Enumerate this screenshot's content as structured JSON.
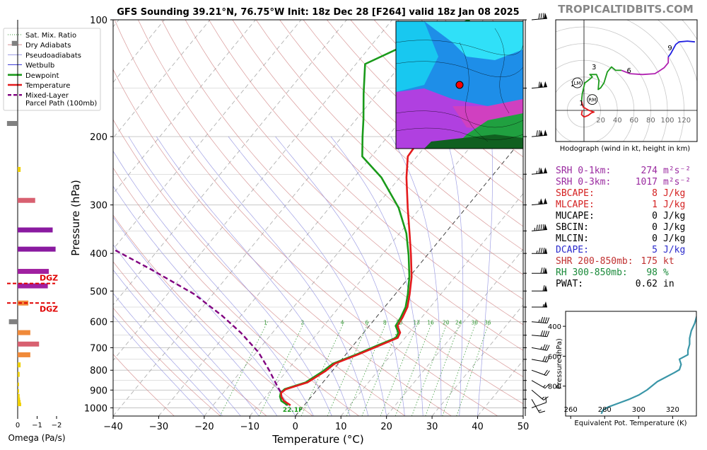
{
  "header": {
    "title": "GFS Sounding 39.21°N, 76.75°W Init: 18z Dec 28 [F264] valid 18z Jan 08 2025",
    "brand": "TROPICALTIDBITS.COM"
  },
  "colors": {
    "temperature": "#e41a1c",
    "dewpoint": "#1a9a1a",
    "parcel": "#800080",
    "dry_adiabat": "#d08080",
    "pseudoadiabat": "#9090e0",
    "mixing_ratio": "#3a9a3a",
    "theta_e": "#3a96a8"
  },
  "legend": {
    "items": [
      {
        "label": "Sat. Mix. Ratio",
        "kind": "dotted",
        "color": "#3a9a3a"
      },
      {
        "label": "Dry Adiabats",
        "kind": "thin",
        "color": "#d08080"
      },
      {
        "label": "Pseudoadiabats",
        "kind": "thin",
        "color": "#9090e0"
      },
      {
        "label": "Wetbulb",
        "kind": "thin",
        "color": "#2020d0"
      },
      {
        "label": "Dewpoint",
        "kind": "thick",
        "color": "#1a9a1a"
      },
      {
        "label": "Temperature",
        "kind": "thick",
        "color": "#e41a1c"
      },
      {
        "label": "Mixed-Layer",
        "label2": "Parcel Path (100mb)",
        "kind": "dashed",
        "color": "#800080"
      }
    ]
  },
  "omega": {
    "xlabel": "Omega (Pa/s)",
    "ticks": [
      "0",
      "−1",
      "−2"
    ],
    "dgz_label": "DGZ",
    "dgz_levels": [
      478,
      537
    ],
    "bars": [
      {
        "p": 115,
        "v": 0.3
      },
      {
        "p": 185,
        "v": 0.55
      },
      {
        "p": 243,
        "v": -0.15
      },
      {
        "p": 292,
        "v": -0.9
      },
      {
        "p": 348,
        "v": -1.8
      },
      {
        "p": 390,
        "v": -1.95
      },
      {
        "p": 445,
        "v": -1.6
      },
      {
        "p": 485,
        "v": -1.55
      },
      {
        "p": 537,
        "v": -0.55
      },
      {
        "p": 600,
        "v": 0.45
      },
      {
        "p": 640,
        "v": -0.65
      },
      {
        "p": 685,
        "v": -1.1
      },
      {
        "p": 730,
        "v": -0.65
      },
      {
        "p": 775,
        "v": -0.15
      },
      {
        "p": 820,
        "v": -0.1
      },
      {
        "p": 870,
        "v": -0.05
      },
      {
        "p": 905,
        "v": -0.05
      },
      {
        "p": 930,
        "v": -0.1
      },
      {
        "p": 950,
        "v": -0.12
      },
      {
        "p": 965,
        "v": -0.15
      },
      {
        "p": 980,
        "v": -0.18
      }
    ]
  },
  "chart_data": [
    {
      "type": "line",
      "title": "GFS Sounding 39.21°N, 76.75°W Init: 18z Dec 28 [F264] valid 18z Jan 08 2025",
      "xlabel": "Temperature (°C)",
      "ylabel": "Pressure (hPa)",
      "xlim": [
        -40,
        50
      ],
      "ylim": [
        1050,
        100
      ],
      "y_scale": "log",
      "skew": true,
      "x_ticks": [
        "−40",
        "−30",
        "−20",
        "−10",
        "0",
        "10",
        "20",
        "30",
        "40",
        "50"
      ],
      "y_ticks": [
        "100",
        "200",
        "300",
        "400",
        "500",
        "600",
        "700",
        "800",
        "900",
        "1000"
      ],
      "mixing_ratio_labels": [
        "1",
        "2",
        "4",
        "6",
        "8",
        "10",
        "13",
        "16",
        "20",
        "24",
        "30",
        "36"
      ],
      "annotation": "22.1F",
      "series": [
        {
          "name": "Temperature",
          "points": [
            [
              -3.0,
              985
            ],
            [
              -5.2,
              960
            ],
            [
              -6.6,
              935
            ],
            [
              -7.3,
              915
            ],
            [
              -6.9,
              895
            ],
            [
              -3.4,
              860
            ],
            [
              -1.5,
              805
            ],
            [
              -0.8,
              770
            ],
            [
              3.0,
              725
            ],
            [
              5.7,
              692
            ],
            [
              8.4,
              660
            ],
            [
              8.0,
              640
            ],
            [
              6.2,
              615
            ],
            [
              5.8,
              585
            ],
            [
              5.0,
              550
            ],
            [
              3.2,
              510
            ],
            [
              0.5,
              460
            ],
            [
              -3.5,
              405
            ],
            [
              -7.8,
              355
            ],
            [
              -12.8,
              305
            ],
            [
              -18.5,
              255
            ],
            [
              -22.0,
              225
            ],
            [
              -22.5,
              200
            ],
            [
              -20.7,
              180
            ],
            [
              -16.8,
              155
            ],
            [
              -12.5,
              130
            ],
            [
              -8.7,
              115
            ],
            [
              -4.2,
              100
            ]
          ]
        },
        {
          "name": "Dewpoint",
          "points": [
            [
              -3.6,
              985
            ],
            [
              -5.8,
              960
            ],
            [
              -6.9,
              935
            ],
            [
              -7.4,
              915
            ],
            [
              -7.2,
              895
            ],
            [
              -3.8,
              860
            ],
            [
              -2.0,
              805
            ],
            [
              -1.2,
              770
            ],
            [
              2.6,
              725
            ],
            [
              5.2,
              692
            ],
            [
              8.0,
              660
            ],
            [
              7.6,
              640
            ],
            [
              5.8,
              615
            ],
            [
              5.4,
              585
            ],
            [
              4.6,
              550
            ],
            [
              2.8,
              510
            ],
            [
              0.0,
              460
            ],
            [
              -4.0,
              405
            ],
            [
              -8.5,
              355
            ],
            [
              -14.8,
              305
            ],
            [
              -24.0,
              255
            ],
            [
              -32.0,
              225
            ],
            [
              -35.5,
              200
            ],
            [
              -38.5,
              180
            ],
            [
              -43.0,
              155
            ],
            [
              -48.0,
              130
            ],
            [
              -42.0,
              115
            ],
            [
              -33.0,
              100
            ]
          ]
        },
        {
          "name": "Mixed-Layer Parcel Path (100mb)",
          "points": [
            [
              -3.8,
              985
            ],
            [
              -5.5,
              960
            ],
            [
              -6.8,
              935
            ],
            [
              -7.3,
              915
            ],
            [
              -9.3,
              880
            ],
            [
              -14.0,
              800
            ],
            [
              -19.5,
              720
            ],
            [
              -27.0,
              640
            ],
            [
              -34.0,
              580
            ],
            [
              -44.0,
              510
            ],
            [
              -58.0,
              440
            ],
            [
              -70.0,
              390
            ],
            [
              -82.0,
              355
            ]
          ]
        }
      ],
      "wind_barbs": [
        {
          "p": 1000,
          "dir": 250,
          "kt": 12
        },
        {
          "p": 950,
          "dir": 330,
          "kt": 18
        },
        {
          "p": 900,
          "dir": 310,
          "kt": 17
        },
        {
          "p": 850,
          "dir": 300,
          "kt": 16
        },
        {
          "p": 800,
          "dir": 290,
          "kt": 20
        },
        {
          "p": 750,
          "dir": 280,
          "kt": 30
        },
        {
          "p": 700,
          "dir": 280,
          "kt": 35
        },
        {
          "p": 650,
          "dir": 275,
          "kt": 40
        },
        {
          "p": 600,
          "dir": 275,
          "kt": 45
        },
        {
          "p": 550,
          "dir": 270,
          "kt": 55
        },
        {
          "p": 500,
          "dir": 270,
          "kt": 60
        },
        {
          "p": 450,
          "dir": 270,
          "kt": 70
        },
        {
          "p": 400,
          "dir": 270,
          "kt": 85
        },
        {
          "p": 350,
          "dir": 265,
          "kt": 95
        },
        {
          "p": 300,
          "dir": 265,
          "kt": 105
        },
        {
          "p": 250,
          "dir": 265,
          "kt": 115
        },
        {
          "p": 200,
          "dir": 265,
          "kt": 120
        },
        {
          "p": 150,
          "dir": 265,
          "kt": 110
        },
        {
          "p": 100,
          "dir": 265,
          "kt": 80
        }
      ]
    },
    {
      "type": "line",
      "title": "Hodograph (wind in kt, height in km)",
      "ring_labels": [
        "20",
        "40",
        "60",
        "80",
        "100",
        "120"
      ],
      "height_labels": [
        "1",
        "2",
        "3",
        "6",
        "9"
      ],
      "markers": [
        "LM",
        "RM"
      ],
      "points": [
        [
          -2,
          0
        ],
        [
          -3,
          -5
        ],
        [
          0,
          -8
        ],
        [
          5,
          -6
        ],
        [
          9,
          -3
        ],
        [
          12,
          -2
        ],
        [
          6,
          0
        ],
        [
          -1,
          4
        ],
        [
          -3,
          11
        ],
        [
          -2,
          20
        ],
        [
          1,
          33
        ],
        [
          4,
          35
        ],
        [
          10,
          40
        ],
        [
          7,
          43
        ],
        [
          15,
          43
        ],
        [
          18,
          36
        ],
        [
          17,
          25
        ],
        [
          20,
          27
        ],
        [
          24,
          33
        ],
        [
          28,
          46
        ],
        [
          33,
          52
        ],
        [
          38,
          48
        ],
        [
          45,
          48
        ],
        [
          55,
          44
        ],
        [
          70,
          43
        ],
        [
          85,
          44
        ],
        [
          90,
          47
        ],
        [
          96,
          51
        ],
        [
          101,
          57
        ],
        [
          101,
          64
        ],
        [
          104,
          68
        ],
        [
          110,
          79
        ],
        [
          114,
          82
        ],
        [
          124,
          83
        ],
        [
          133,
          82
        ]
      ],
      "series_colors": [
        {
          "from": 0,
          "to": 8,
          "color": "#e41a1c"
        },
        {
          "from": 8,
          "to": 22,
          "color": "#1a9a1a"
        },
        {
          "from": 22,
          "to": 29,
          "color": "#b020b0"
        },
        {
          "from": 29,
          "to": 34,
          "color": "#2020e0"
        }
      ]
    },
    {
      "type": "line",
      "xlabel": "Equivalent Pot. Temperature (K)",
      "ylabel": "Pressure (hPa)",
      "xlim": [
        257,
        334
      ],
      "ylim": [
        1000,
        300
      ],
      "x_ticks": [
        "260",
        "280",
        "300",
        "320"
      ],
      "y_ticks": [
        "400",
        "600",
        "800"
      ],
      "points": [
        [
          278,
          985
        ],
        [
          279,
          960
        ],
        [
          282,
          940
        ],
        [
          288,
          915
        ],
        [
          294,
          890
        ],
        [
          300,
          860
        ],
        [
          305,
          825
        ],
        [
          311,
          770
        ],
        [
          316,
          740
        ],
        [
          321,
          710
        ],
        [
          324,
          690
        ],
        [
          325,
          655
        ],
        [
          324,
          620
        ],
        [
          329,
          590
        ],
        [
          329,
          560
        ],
        [
          330,
          520
        ],
        [
          330,
          480
        ],
        [
          331,
          430
        ],
        [
          333,
          380
        ],
        [
          334,
          340
        ],
        [
          335,
          300
        ]
      ]
    }
  ],
  "stats": [
    {
      "label": "SRH 0-1km:",
      "value": "274",
      "unit": "m²s⁻²",
      "color": "#9a2aa0"
    },
    {
      "label": "SRH 0-3km:",
      "value": "1017",
      "unit": "m²s⁻²",
      "color": "#9a2aa0"
    },
    {
      "label": "SBCAPE:",
      "value": "8",
      "unit": "J/kg",
      "color": "#d42020"
    },
    {
      "label": "MLCAPE:",
      "value": "1",
      "unit": "J/kg",
      "color": "#d42020"
    },
    {
      "label": "MUCAPE:",
      "value": "0",
      "unit": "J/kg",
      "color": "#000000"
    },
    {
      "label": "SBCIN:",
      "value": "0",
      "unit": "J/kg",
      "color": "#000000"
    },
    {
      "label": "MLCIN:",
      "value": "0",
      "unit": "J/kg",
      "color": "#000000"
    },
    {
      "label": "DCAPE:",
      "value": "5",
      "unit": "J/kg",
      "color": "#2a2acc"
    },
    {
      "label": "SHR 200-850mb:",
      "value": "175",
      "unit": "kt",
      "color": "#c03030"
    },
    {
      "label": "RH 300-850mb:",
      "value": "98",
      "unit": "%",
      "color": "#1a8a3a"
    },
    {
      "label": "PWAT:",
      "value": "0.62",
      "unit": "in",
      "color": "#000000"
    }
  ]
}
